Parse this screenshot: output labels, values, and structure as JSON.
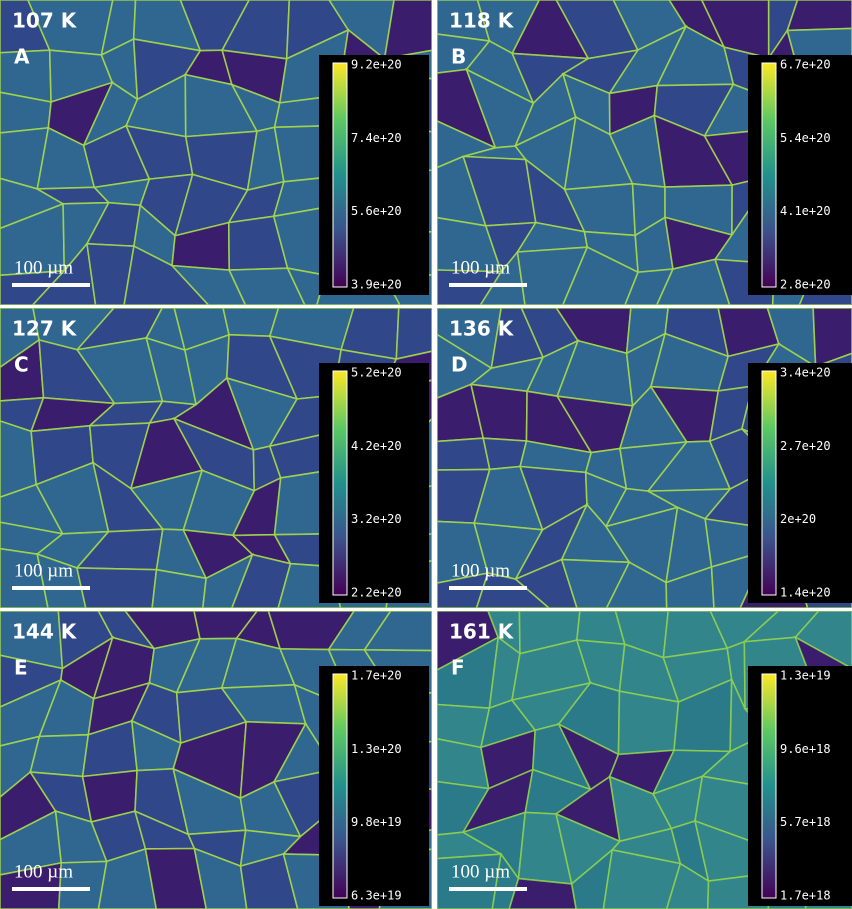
{
  "panels": [
    {
      "temperature": "107 K",
      "letter": "A",
      "scale_bar": "100 µm",
      "colorbar": [
        "9.2e+20",
        "7.4e+20",
        "5.6e+20",
        "3.9e+20"
      ]
    },
    {
      "temperature": "118 K",
      "letter": "B",
      "scale_bar": "100 µm",
      "colorbar": [
        "6.7e+20",
        "5.4e+20",
        "4.1e+20",
        "2.8e+20"
      ]
    },
    {
      "temperature": "127 K",
      "letter": "C",
      "scale_bar": "100 µm",
      "colorbar": [
        "5.2e+20",
        "4.2e+20",
        "3.2e+20",
        "2.2e+20"
      ]
    },
    {
      "temperature": "136 K",
      "letter": "D",
      "scale_bar": "100 µm",
      "colorbar": [
        "3.4e+20",
        "2.7e+20",
        "2e+20",
        "1.4e+20"
      ]
    },
    {
      "temperature": "144 K",
      "letter": "E",
      "scale_bar": "100 µm",
      "colorbar": [
        "1.7e+20",
        "1.3e+20",
        "9.8e+19",
        "6.3e+19"
      ]
    },
    {
      "temperature": "161 K",
      "letter": "F",
      "scale_bar": "100 µm",
      "colorbar": [
        "1.3e+19",
        "9.6e+18",
        "5.7e+18",
        "1.7e+18"
      ]
    }
  ]
}
